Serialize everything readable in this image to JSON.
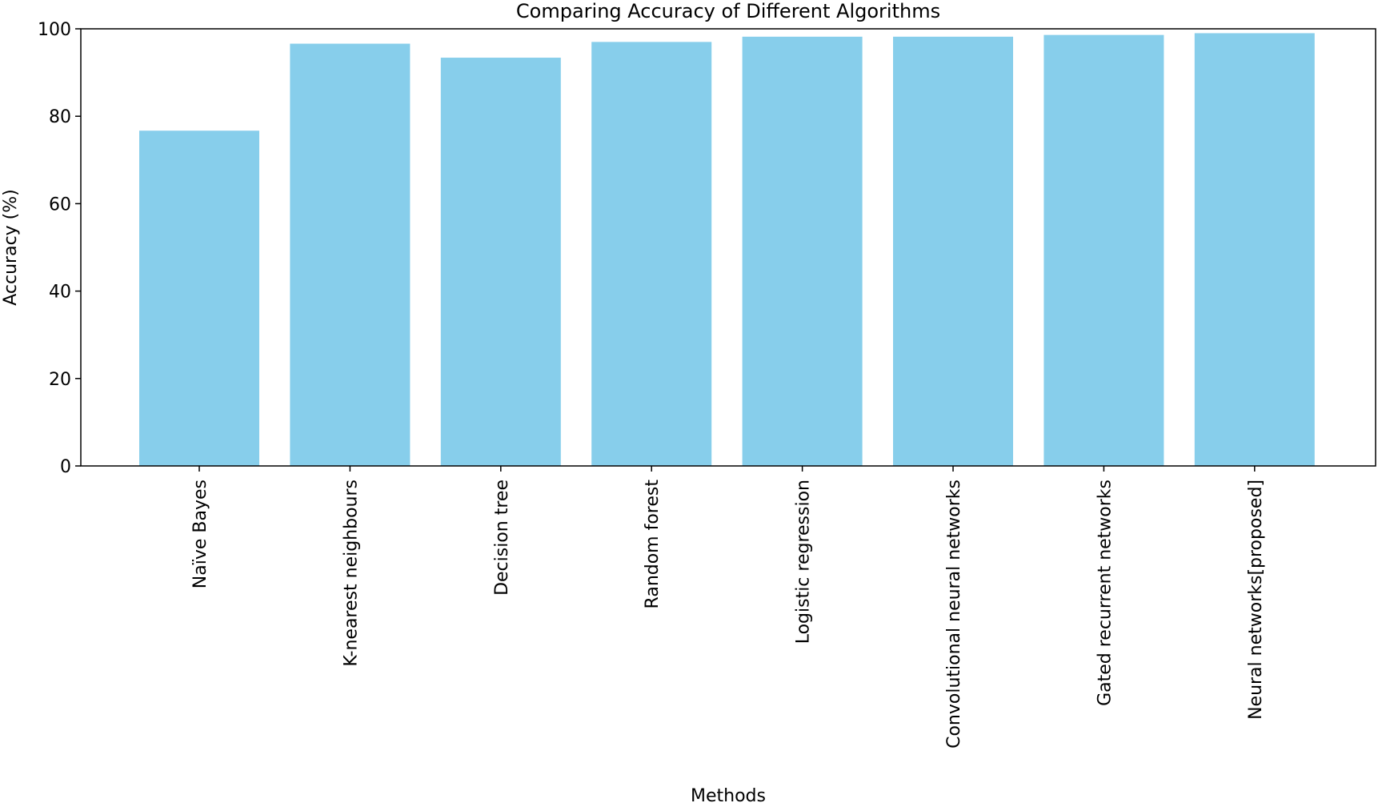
{
  "chart_data": {
    "type": "bar",
    "title": "Comparing Accuracy of Different Algorithms",
    "xlabel": "Methods",
    "ylabel": "Accuracy (%)",
    "categories": [
      "Naïve Bayes",
      "K-nearest neighbours",
      "Decision tree",
      "Random forest",
      "Logistic regression",
      "Convolutional neural networks",
      "Gated recurrent networks",
      "Neural networks[proposed]"
    ],
    "values": [
      76.7,
      96.6,
      93.4,
      97.0,
      98.2,
      98.2,
      98.6,
      99.0
    ],
    "ylim": [
      0,
      100
    ],
    "yticks": [
      0,
      20,
      40,
      60,
      80,
      100
    ],
    "grid": false,
    "bar_color": "#87CEEB"
  }
}
